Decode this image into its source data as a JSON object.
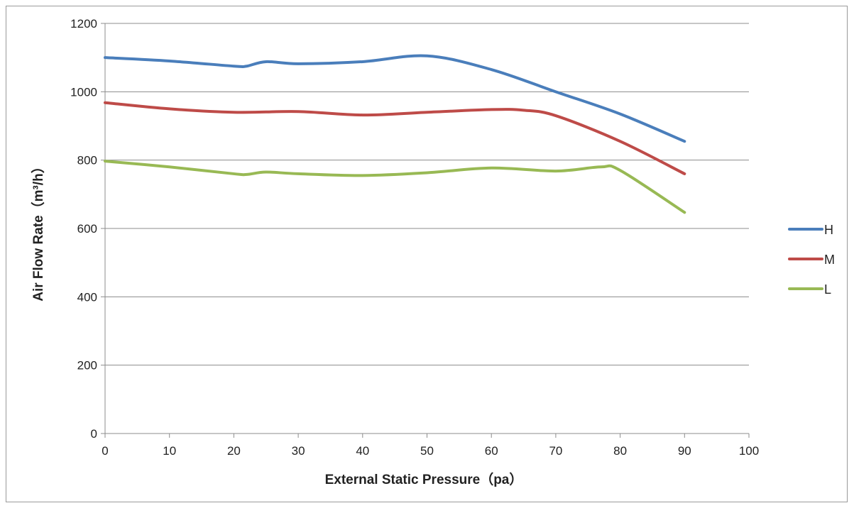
{
  "chart_data": {
    "type": "line",
    "title": "",
    "xlabel": "External Static Pressure（pa）",
    "ylabel": "Air Flow Rate（m³/h）",
    "xlim": [
      0,
      100
    ],
    "ylim": [
      0,
      1200
    ],
    "x_ticks": [
      0,
      10,
      20,
      30,
      40,
      50,
      60,
      70,
      80,
      90,
      100
    ],
    "y_ticks": [
      0,
      200,
      400,
      600,
      800,
      1000,
      1200
    ],
    "grid": "horizontal",
    "legend": "right",
    "series": [
      {
        "name": "H",
        "color": "#4a7ebb",
        "x": [
          0,
          10,
          20,
          22,
          25,
          30,
          40,
          50,
          60,
          70,
          80,
          90
        ],
        "y": [
          1100,
          1090,
          1075,
          1075,
          1088,
          1082,
          1088,
          1105,
          1065,
          1000,
          935,
          855
        ]
      },
      {
        "name": "M",
        "color": "#be4b48",
        "x": [
          0,
          10,
          20,
          30,
          40,
          50,
          60,
          65,
          70,
          80,
          90
        ],
        "y": [
          968,
          950,
          940,
          942,
          932,
          940,
          948,
          946,
          930,
          855,
          760
        ]
      },
      {
        "name": "L",
        "color": "#98b954",
        "x": [
          0,
          10,
          20,
          22,
          25,
          30,
          40,
          50,
          60,
          70,
          77,
          80,
          90
        ],
        "y": [
          797,
          780,
          760,
          758,
          765,
          760,
          755,
          763,
          777,
          768,
          780,
          770,
          647
        ]
      }
    ]
  }
}
